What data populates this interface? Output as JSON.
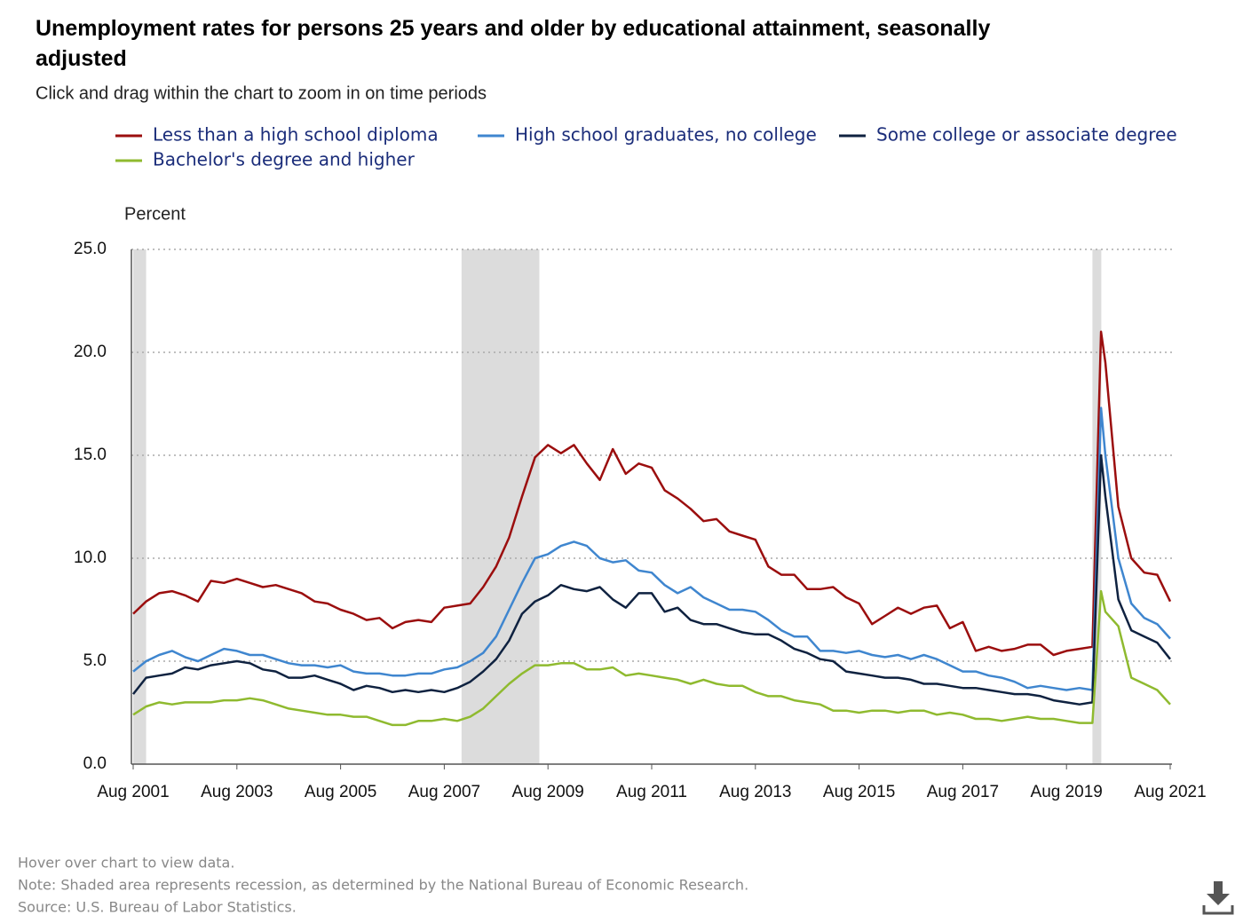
{
  "chart_data": {
    "type": "line",
    "title": "Unemployment rates for persons 25 years and older by educational attainment, seasonally adjusted",
    "subtitle": "Click and drag within the chart to zoom in on time periods",
    "y_label": "Percent",
    "notes": [
      "Hover over chart to view data.",
      "Note: Shaded area represents recession, as determined by the National Bureau of Economic Research.",
      "Source: U.S. Bureau of Labor Statistics."
    ],
    "recessions": [
      {
        "start": "2001-08",
        "end": "2001-11"
      },
      {
        "start": "2007-12",
        "end": "2009-06"
      },
      {
        "start": "2020-02",
        "end": "2020-04"
      }
    ],
    "xlim": [
      "2001-08",
      "2021-08"
    ],
    "xticks": [
      {
        "value": "2001-08",
        "label": "Aug 2001"
      },
      {
        "value": "2003-08",
        "label": "Aug 2003"
      },
      {
        "value": "2005-08",
        "label": "Aug 2005"
      },
      {
        "value": "2007-08",
        "label": "Aug 2007"
      },
      {
        "value": "2009-08",
        "label": "Aug 2009"
      },
      {
        "value": "2011-08",
        "label": "Aug 2011"
      },
      {
        "value": "2013-08",
        "label": "Aug 2013"
      },
      {
        "value": "2015-08",
        "label": "Aug 2015"
      },
      {
        "value": "2017-08",
        "label": "Aug 2017"
      },
      {
        "value": "2019-08",
        "label": "Aug 2019"
      },
      {
        "value": "2021-08",
        "label": "Aug 2021"
      }
    ],
    "ylim": [
      0,
      25
    ],
    "yticks": [
      {
        "value": 0,
        "label": "0.0"
      },
      {
        "value": 5,
        "label": "5.0"
      },
      {
        "value": 10,
        "label": "10.0"
      },
      {
        "value": 15,
        "label": "15.0"
      },
      {
        "value": 20,
        "label": "20.0"
      },
      {
        "value": 25,
        "label": "25.0"
      }
    ],
    "grid": true,
    "x": [
      "2001-08",
      "2001-11",
      "2002-02",
      "2002-05",
      "2002-08",
      "2002-11",
      "2003-02",
      "2003-05",
      "2003-08",
      "2003-11",
      "2004-02",
      "2004-05",
      "2004-08",
      "2004-11",
      "2005-02",
      "2005-05",
      "2005-08",
      "2005-11",
      "2006-02",
      "2006-05",
      "2006-08",
      "2006-11",
      "2007-02",
      "2007-05",
      "2007-08",
      "2007-11",
      "2008-02",
      "2008-05",
      "2008-08",
      "2008-11",
      "2009-02",
      "2009-05",
      "2009-08",
      "2009-11",
      "2010-02",
      "2010-05",
      "2010-08",
      "2010-11",
      "2011-02",
      "2011-05",
      "2011-08",
      "2011-11",
      "2012-02",
      "2012-05",
      "2012-08",
      "2012-11",
      "2013-02",
      "2013-05",
      "2013-08",
      "2013-11",
      "2014-02",
      "2014-05",
      "2014-08",
      "2014-11",
      "2015-02",
      "2015-05",
      "2015-08",
      "2015-11",
      "2016-02",
      "2016-05",
      "2016-08",
      "2016-11",
      "2017-02",
      "2017-05",
      "2017-08",
      "2017-11",
      "2018-02",
      "2018-05",
      "2018-08",
      "2018-11",
      "2019-02",
      "2019-05",
      "2019-08",
      "2019-11",
      "2020-02",
      "2020-04",
      "2020-05",
      "2020-08",
      "2020-11",
      "2021-02",
      "2021-05",
      "2021-08"
    ],
    "series": [
      {
        "name": "Less than a high school diploma",
        "color": "#9b0e0e",
        "values": [
          7.3,
          7.9,
          8.3,
          8.4,
          8.2,
          7.9,
          8.9,
          8.8,
          9.0,
          8.8,
          8.6,
          8.7,
          8.5,
          8.3,
          7.9,
          7.8,
          7.5,
          7.3,
          7.0,
          7.1,
          6.6,
          6.9,
          7.0,
          6.9,
          7.6,
          7.7,
          7.8,
          8.6,
          9.6,
          11.0,
          13.0,
          14.9,
          15.5,
          15.1,
          15.5,
          14.6,
          13.8,
          15.3,
          14.1,
          14.6,
          14.4,
          13.3,
          12.9,
          12.4,
          11.8,
          11.9,
          11.3,
          11.1,
          10.9,
          9.6,
          9.2,
          9.2,
          8.5,
          8.5,
          8.6,
          8.1,
          7.8,
          6.8,
          7.2,
          7.6,
          7.3,
          7.6,
          7.7,
          6.6,
          6.9,
          5.5,
          5.7,
          5.5,
          5.6,
          5.8,
          5.8,
          5.3,
          5.5,
          5.6,
          5.7,
          21.0,
          19.5,
          12.5,
          10.0,
          9.3,
          9.2,
          7.9
        ]
      },
      {
        "name": "High school graduates, no college",
        "color": "#3f86cf",
        "values": [
          4.5,
          5.0,
          5.3,
          5.5,
          5.2,
          5.0,
          5.3,
          5.6,
          5.5,
          5.3,
          5.3,
          5.1,
          4.9,
          4.8,
          4.8,
          4.7,
          4.8,
          4.5,
          4.4,
          4.4,
          4.3,
          4.3,
          4.4,
          4.4,
          4.6,
          4.7,
          5.0,
          5.4,
          6.2,
          7.5,
          8.8,
          10.0,
          10.2,
          10.6,
          10.8,
          10.6,
          10.0,
          9.8,
          9.9,
          9.4,
          9.3,
          8.7,
          8.3,
          8.6,
          8.1,
          7.8,
          7.5,
          7.5,
          7.4,
          7.0,
          6.5,
          6.2,
          6.2,
          5.5,
          5.5,
          5.4,
          5.5,
          5.3,
          5.2,
          5.3,
          5.1,
          5.3,
          5.1,
          4.8,
          4.5,
          4.5,
          4.3,
          4.2,
          4.0,
          3.7,
          3.8,
          3.7,
          3.6,
          3.7,
          3.6,
          17.3,
          15.0,
          10.0,
          7.8,
          7.1,
          6.8,
          6.1
        ]
      },
      {
        "name": "Some college or associate degree",
        "color": "#0f2240",
        "values": [
          3.4,
          4.2,
          4.3,
          4.4,
          4.7,
          4.6,
          4.8,
          4.9,
          5.0,
          4.9,
          4.6,
          4.5,
          4.2,
          4.2,
          4.3,
          4.1,
          3.9,
          3.6,
          3.8,
          3.7,
          3.5,
          3.6,
          3.5,
          3.6,
          3.5,
          3.7,
          4.0,
          4.5,
          5.1,
          6.0,
          7.3,
          7.9,
          8.2,
          8.7,
          8.5,
          8.4,
          8.6,
          8.0,
          7.6,
          8.3,
          8.3,
          7.4,
          7.6,
          7.0,
          6.8,
          6.8,
          6.6,
          6.4,
          6.3,
          6.3,
          6.0,
          5.6,
          5.4,
          5.1,
          5.0,
          4.5,
          4.4,
          4.3,
          4.2,
          4.2,
          4.1,
          3.9,
          3.9,
          3.8,
          3.7,
          3.7,
          3.6,
          3.5,
          3.4,
          3.4,
          3.3,
          3.1,
          3.0,
          2.9,
          3.0,
          15.0,
          13.0,
          8.0,
          6.5,
          6.2,
          5.9,
          5.1
        ]
      },
      {
        "name": "Bachelor's degree and higher",
        "color": "#8fba2f",
        "values": [
          2.4,
          2.8,
          3.0,
          2.9,
          3.0,
          3.0,
          3.0,
          3.1,
          3.1,
          3.2,
          3.1,
          2.9,
          2.7,
          2.6,
          2.5,
          2.4,
          2.4,
          2.3,
          2.3,
          2.1,
          1.9,
          1.9,
          2.1,
          2.1,
          2.2,
          2.1,
          2.3,
          2.7,
          3.3,
          3.9,
          4.4,
          4.8,
          4.8,
          4.9,
          4.9,
          4.6,
          4.6,
          4.7,
          4.3,
          4.4,
          4.3,
          4.2,
          4.1,
          3.9,
          4.1,
          3.9,
          3.8,
          3.8,
          3.5,
          3.3,
          3.3,
          3.1,
          3.0,
          2.9,
          2.6,
          2.6,
          2.5,
          2.6,
          2.6,
          2.5,
          2.6,
          2.6,
          2.4,
          2.5,
          2.4,
          2.2,
          2.2,
          2.1,
          2.2,
          2.3,
          2.2,
          2.2,
          2.1,
          2.0,
          2.0,
          8.4,
          7.4,
          6.7,
          4.2,
          3.9,
          3.6,
          2.9
        ]
      }
    ]
  }
}
